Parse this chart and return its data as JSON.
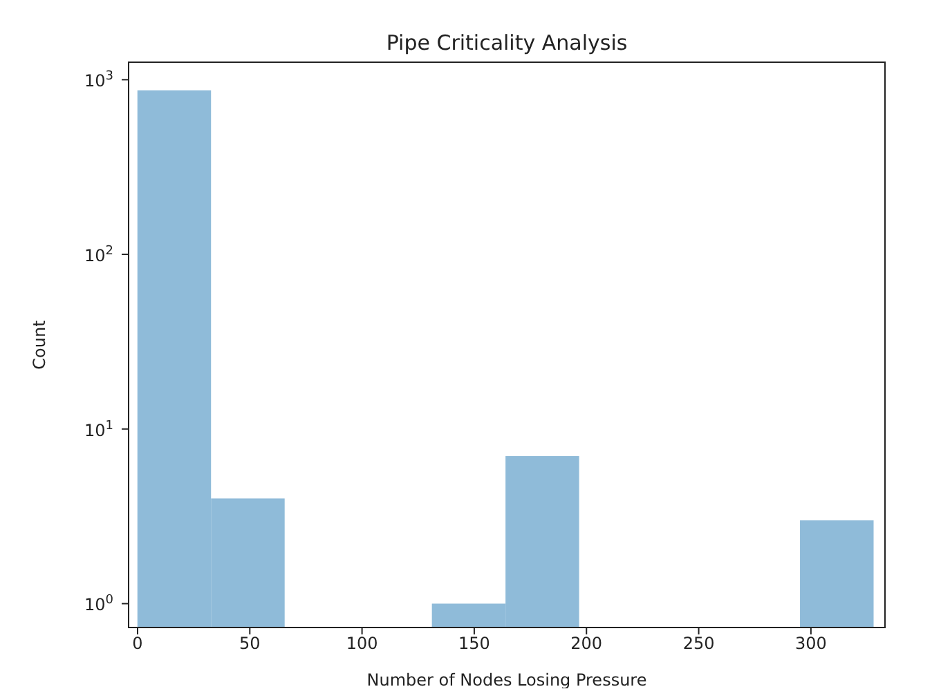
{
  "chart_data": {
    "type": "histogram",
    "title": "Pipe Criticality Analysis",
    "xlabel": "Number of Nodes Losing Pressure",
    "ylabel": "Count",
    "bins": [
      0,
      32.8,
      65.6,
      98.4,
      131.2,
      164,
      196.8,
      229.6,
      262.4,
      295.2,
      328
    ],
    "values": [
      870,
      4,
      null,
      null,
      1,
      7,
      null,
      null,
      null,
      3
    ],
    "color": "#8fbbd9",
    "log": "y",
    "xlim": [
      -4,
      333
    ],
    "ylim": [
      0.73,
      1260
    ],
    "xticks": [
      0,
      50,
      100,
      150,
      200,
      250,
      300
    ],
    "yticks": [
      {
        "value": 1,
        "label": "10$^{0}$"
      },
      {
        "value": 10,
        "label": "10$^{1}$"
      },
      {
        "value": 100,
        "label": "10$^{2}$"
      },
      {
        "value": 1000,
        "label": "10$^{3}$"
      }
    ],
    "grid": false
  }
}
